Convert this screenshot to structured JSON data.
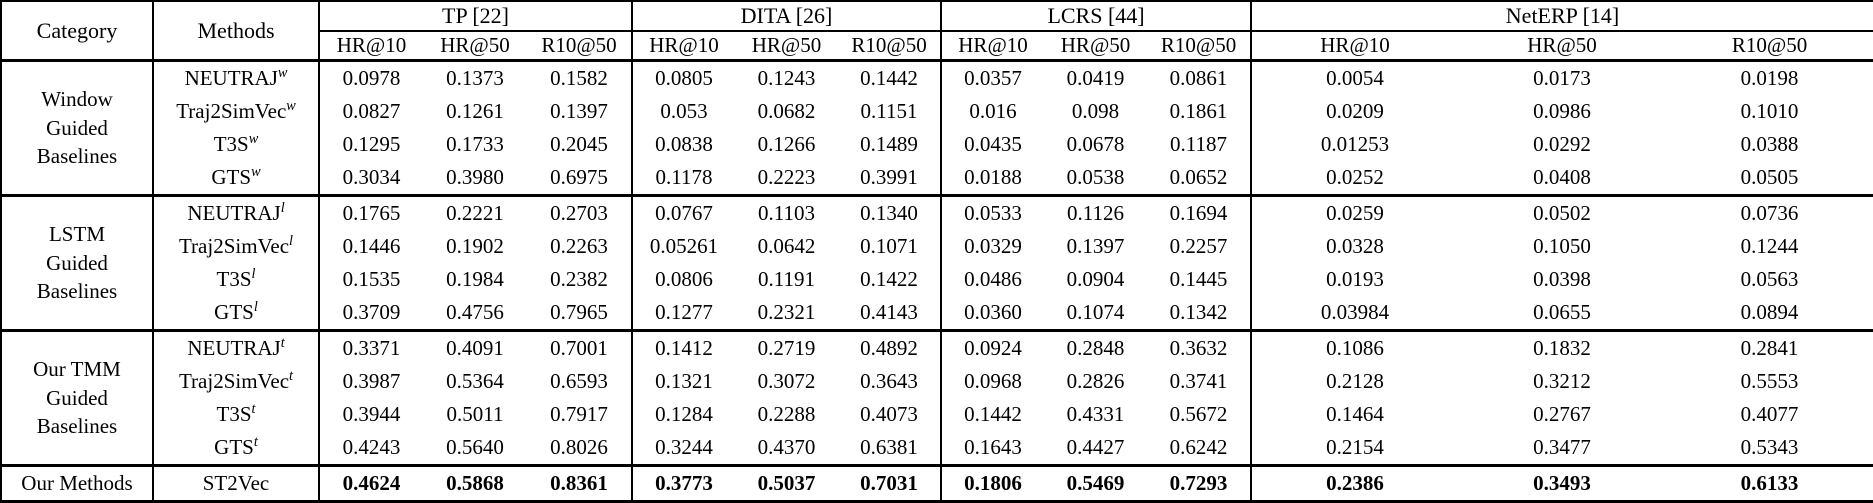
{
  "chart_data": {
    "type": "table",
    "corner_headers": [
      "Category",
      "Methods"
    ],
    "groups": [
      {
        "label": "TP [22]"
      },
      {
        "label": "DITA [26]"
      },
      {
        "label": "LCRS [44]"
      },
      {
        "label": "NetERP [14]"
      }
    ],
    "metrics": [
      "HR@10",
      "HR@50",
      "R10@50"
    ],
    "sections": [
      {
        "category_lines": [
          "Window",
          "Guided",
          "Baselines"
        ],
        "rows": [
          {
            "method": "NEUTRAJ",
            "sup": "w",
            "bold": false,
            "values": [
              "0.0978",
              "0.1373",
              "0.1582",
              "0.0805",
              "0.1243",
              "0.1442",
              "0.0357",
              "0.0419",
              "0.0861",
              "0.0054",
              "0.0173",
              "0.0198"
            ]
          },
          {
            "method": "Traj2SimVec",
            "sup": "w",
            "bold": false,
            "values": [
              "0.0827",
              "0.1261",
              "0.1397",
              "0.053",
              "0.0682",
              "0.1151",
              "0.016",
              "0.098",
              "0.1861",
              "0.0209",
              "0.0986",
              "0.1010"
            ]
          },
          {
            "method": "T3S",
            "sup": "w",
            "bold": false,
            "values": [
              "0.1295",
              "0.1733",
              "0.2045",
              "0.0838",
              "0.1266",
              "0.1489",
              "0.0435",
              "0.0678",
              "0.1187",
              "0.01253",
              "0.0292",
              "0.0388"
            ]
          },
          {
            "method": "GTS",
            "sup": "w",
            "bold": false,
            "values": [
              "0.3034",
              "0.3980",
              "0.6975",
              "0.1178",
              "0.2223",
              "0.3991",
              "0.0188",
              "0.0538",
              "0.0652",
              "0.0252",
              "0.0408",
              "0.0505"
            ]
          }
        ]
      },
      {
        "category_lines": [
          "LSTM",
          "Guided",
          "Baselines"
        ],
        "rows": [
          {
            "method": "NEUTRAJ",
            "sup": "l",
            "bold": false,
            "values": [
              "0.1765",
              "0.2221",
              "0.2703",
              "0.0767",
              "0.1103",
              "0.1340",
              "0.0533",
              "0.1126",
              "0.1694",
              "0.0259",
              "0.0502",
              "0.0736"
            ]
          },
          {
            "method": "Traj2SimVec",
            "sup": "l",
            "bold": false,
            "values": [
              "0.1446",
              "0.1902",
              "0.2263",
              "0.05261",
              "0.0642",
              "0.1071",
              "0.0329",
              "0.1397",
              "0.2257",
              "0.0328",
              "0.1050",
              "0.1244"
            ]
          },
          {
            "method": "T3S",
            "sup": "l",
            "bold": false,
            "values": [
              "0.1535",
              "0.1984",
              "0.2382",
              "0.0806",
              "0.1191",
              "0.1422",
              "0.0486",
              "0.0904",
              "0.1445",
              "0.0193",
              "0.0398",
              "0.0563"
            ]
          },
          {
            "method": "GTS",
            "sup": "l",
            "bold": false,
            "values": [
              "0.3709",
              "0.4756",
              "0.7965",
              "0.1277",
              "0.2321",
              "0.4143",
              "0.0360",
              "0.1074",
              "0.1342",
              "0.03984",
              "0.0655",
              "0.0894"
            ]
          }
        ]
      },
      {
        "category_lines": [
          "Our TMM",
          "Guided",
          "Baselines"
        ],
        "rows": [
          {
            "method": "NEUTRAJ",
            "sup": "t",
            "bold": false,
            "values": [
              "0.3371",
              "0.4091",
              "0.7001",
              "0.1412",
              "0.2719",
              "0.4892",
              "0.0924",
              "0.2848",
              "0.3632",
              "0.1086",
              "0.1832",
              "0.2841"
            ]
          },
          {
            "method": "Traj2SimVec",
            "sup": "t",
            "bold": false,
            "values": [
              "0.3987",
              "0.5364",
              "0.6593",
              "0.1321",
              "0.3072",
              "0.3643",
              "0.0968",
              "0.2826",
              "0.3741",
              "0.2128",
              "0.3212",
              "0.5553"
            ]
          },
          {
            "method": "T3S",
            "sup": "t",
            "bold": false,
            "values": [
              "0.3944",
              "0.5011",
              "0.7917",
              "0.1284",
              "0.2288",
              "0.4073",
              "0.1442",
              "0.4331",
              "0.5672",
              "0.1464",
              "0.2767",
              "0.4077"
            ]
          },
          {
            "method": "GTS",
            "sup": "t",
            "bold": false,
            "values": [
              "0.4243",
              "0.5640",
              "0.8026",
              "0.3244",
              "0.4370",
              "0.6381",
              "0.1643",
              "0.4427",
              "0.6242",
              "0.2154",
              "0.3477",
              "0.5343"
            ]
          }
        ]
      },
      {
        "category_lines": [
          "Our Methods"
        ],
        "rows": [
          {
            "method": "ST2Vec",
            "sup": "",
            "bold": true,
            "values": [
              "0.4624",
              "0.5868",
              "0.8361",
              "0.3773",
              "0.5037",
              "0.7031",
              "0.1806",
              "0.5469",
              "0.7293",
              "0.2386",
              "0.3493",
              "0.6133"
            ]
          }
        ]
      }
    ]
  }
}
